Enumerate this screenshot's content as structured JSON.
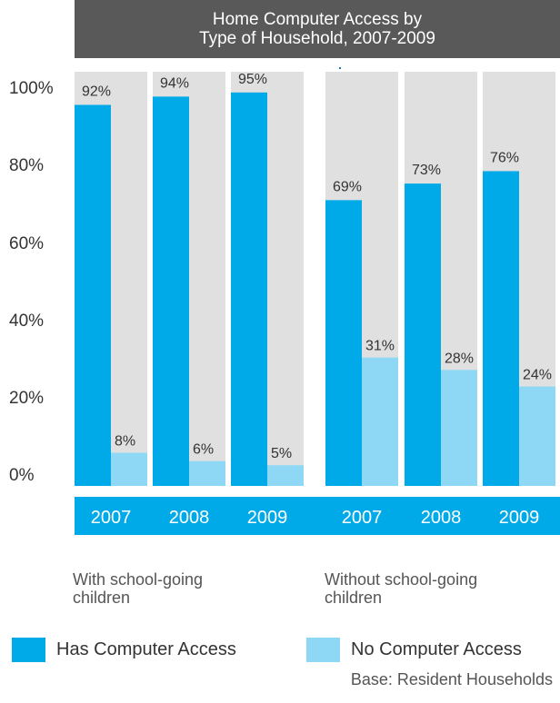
{
  "chart_data": {
    "type": "bar",
    "title": "Home Computer Access by Type of Household, 2007-2009",
    "title_lines": [
      "Home Computer Access by",
      "Type of Household, 2007-2009"
    ],
    "ylim": [
      0,
      100
    ],
    "yticks": [
      "0%",
      "20%",
      "40%",
      "60%",
      "80%",
      "100%"
    ],
    "groups": [
      {
        "label": "With school-going children",
        "label_lines": [
          "With school-going",
          "children"
        ],
        "categories": [
          "2007",
          "2008",
          "2009"
        ],
        "series": [
          {
            "name": "Has Computer Access",
            "values": [
              92,
              94,
              95
            ],
            "labels": [
              "92%",
              "94%",
              "95%"
            ]
          },
          {
            "name": "No Computer Access",
            "values": [
              8,
              6,
              5
            ],
            "labels": [
              "8%",
              "6%",
              "5%"
            ]
          }
        ]
      },
      {
        "label": "Without school-going children",
        "label_lines": [
          "Without school-going",
          "children"
        ],
        "categories": [
          "2007",
          "2008",
          "2009"
        ],
        "series": [
          {
            "name": "Has Computer Access",
            "values": [
              69,
              73,
              76
            ],
            "labels": [
              "69%",
              "73%",
              "76%"
            ]
          },
          {
            "name": "No Computer Access",
            "values": [
              31,
              28,
              24
            ],
            "labels": [
              "31%",
              "28%",
              "24%"
            ]
          }
        ]
      }
    ],
    "legend": [
      "Has Computer Access",
      "No Computer Access"
    ],
    "colors": {
      "has": "#00a9e8",
      "no": "#8fd8f5",
      "background_column": "#e0e0e1",
      "axis_band": "#00a9e8",
      "divider": "#1a7fb0",
      "title_bg": "#595959"
    },
    "note": "Base: Resident Households"
  }
}
